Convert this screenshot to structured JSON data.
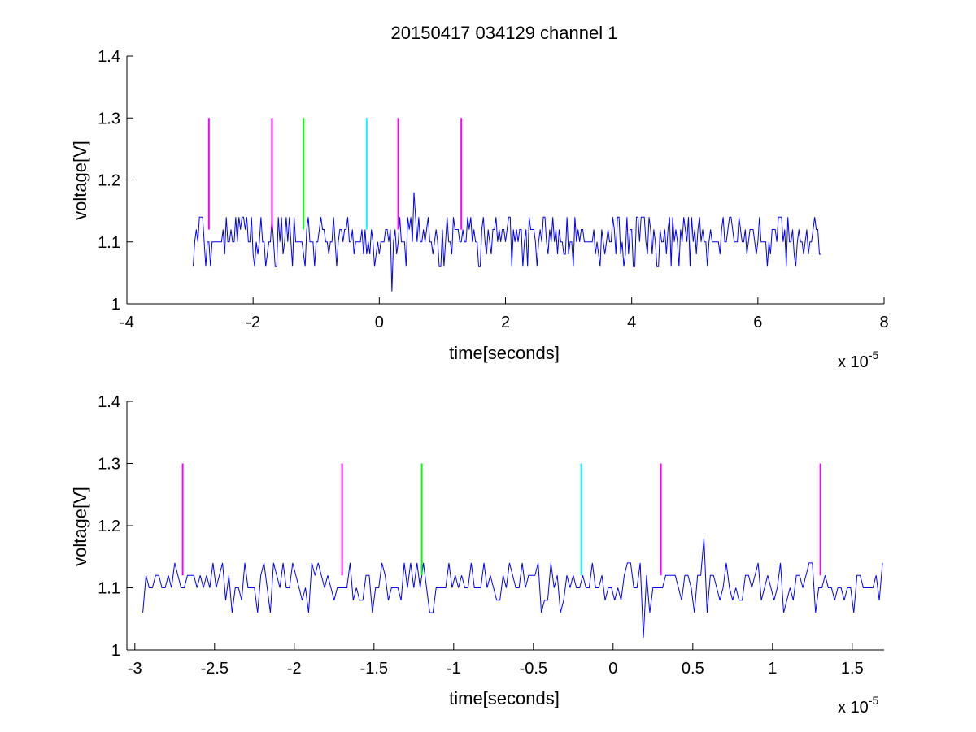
{
  "chart_data": [
    {
      "type": "line",
      "title": "20150417 034129 channel 1",
      "xlabel": "time[seconds]",
      "ylabel": "voltage[V]",
      "x_multiplier": {
        "base": "x 10",
        "exponent": "-5"
      },
      "xlim": [
        -4,
        8
      ],
      "ylim": [
        1,
        1.4
      ],
      "xticks": [
        -4,
        -2,
        0,
        2,
        4,
        6,
        8
      ],
      "xtick_labels": [
        "-4",
        "-2",
        "0",
        "2",
        "4",
        "6",
        "8"
      ],
      "yticks": [
        1,
        1.1,
        1.2,
        1.3,
        1.4
      ],
      "ytick_labels": [
        "1",
        "1.1",
        "1.2",
        "1.3",
        "1.4"
      ],
      "grid": false,
      "series": [
        {
          "color": "#0000ff",
          "x_range": [
            -2.95,
            7.0
          ],
          "baseline": 1.1,
          "levels": [
            1.06,
            1.1,
            1.14
          ],
          "features": [
            {
              "x": 0.2,
              "y": 1.02
            },
            {
              "x": 0.55,
              "y": 1.18
            }
          ]
        }
      ],
      "markers": [
        {
          "x": -2.7,
          "y_from": 1.12,
          "y_to": 1.3,
          "color": "#ff00ff"
        },
        {
          "x": -1.7,
          "y_from": 1.12,
          "y_to": 1.3,
          "color": "#ff00ff"
        },
        {
          "x": -1.2,
          "y_from": 1.12,
          "y_to": 1.3,
          "color": "#00ff00"
        },
        {
          "x": -0.2,
          "y_from": 1.12,
          "y_to": 1.3,
          "color": "#00ffff"
        },
        {
          "x": 0.3,
          "y_from": 1.12,
          "y_to": 1.3,
          "color": "#ff00ff"
        },
        {
          "x": 1.3,
          "y_from": 1.12,
          "y_to": 1.3,
          "color": "#ff00ff"
        }
      ]
    },
    {
      "type": "line",
      "title": "",
      "xlabel": "time[seconds]",
      "ylabel": "voltage[V]",
      "x_multiplier": {
        "base": "x 10",
        "exponent": "-5"
      },
      "xlim": [
        -3.05,
        1.7
      ],
      "ylim": [
        1,
        1.4
      ],
      "xticks": [
        -3,
        -2.5,
        -2,
        -1.5,
        -1,
        -0.5,
        0,
        0.5,
        1,
        1.5
      ],
      "xtick_labels": [
        "-3",
        "-2.5",
        "-2",
        "-1.5",
        "-1",
        "-0.5",
        "0",
        "0.5",
        "1",
        "1.5"
      ],
      "yticks": [
        1,
        1.1,
        1.2,
        1.3,
        1.4
      ],
      "ytick_labels": [
        "1",
        "1.1",
        "1.2",
        "1.3",
        "1.4"
      ],
      "grid": false,
      "series": [
        {
          "color": "#0000ff",
          "x_range": [
            -2.95,
            1.7
          ],
          "baseline": 1.1,
          "levels": [
            1.06,
            1.1,
            1.14
          ],
          "features": [
            {
              "x": 0.2,
              "y": 1.02
            },
            {
              "x": 0.58,
              "y": 1.18
            }
          ]
        }
      ],
      "markers": [
        {
          "x": -2.7,
          "y_from": 1.12,
          "y_to": 1.3,
          "color": "#ff00ff"
        },
        {
          "x": -1.7,
          "y_from": 1.12,
          "y_to": 1.3,
          "color": "#ff00ff"
        },
        {
          "x": -1.2,
          "y_from": 1.12,
          "y_to": 1.3,
          "color": "#00ff00"
        },
        {
          "x": -0.2,
          "y_from": 1.12,
          "y_to": 1.3,
          "color": "#00ffff"
        },
        {
          "x": 0.3,
          "y_from": 1.12,
          "y_to": 1.3,
          "color": "#ff00ff"
        },
        {
          "x": 1.3,
          "y_from": 1.12,
          "y_to": 1.3,
          "color": "#ff00ff"
        }
      ]
    }
  ]
}
